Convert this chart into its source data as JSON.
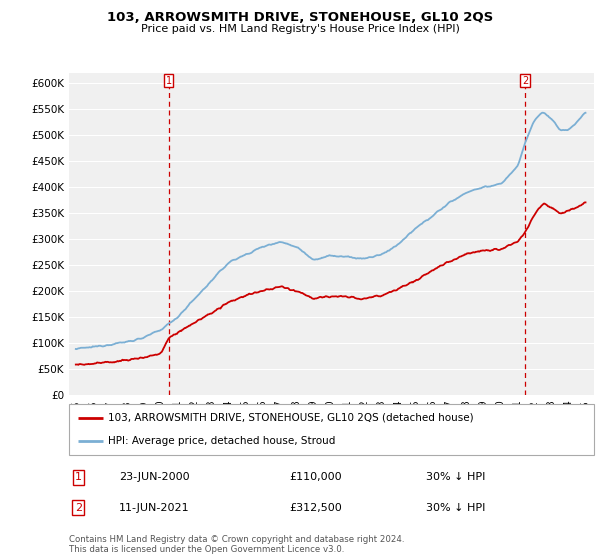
{
  "title": "103, ARROWSMITH DRIVE, STONEHOUSE, GL10 2QS",
  "subtitle": "Price paid vs. HM Land Registry's House Price Index (HPI)",
  "red_label": "103, ARROWSMITH DRIVE, STONEHOUSE, GL10 2QS (detached house)",
  "blue_label": "HPI: Average price, detached house, Stroud",
  "marker1_date": "23-JUN-2000",
  "marker1_price": 110000,
  "marker1_info": "30% ↓ HPI",
  "marker2_date": "11-JUN-2021",
  "marker2_price": 312500,
  "marker2_info": "30% ↓ HPI",
  "footer": "Contains HM Land Registry data © Crown copyright and database right 2024.\nThis data is licensed under the Open Government Licence v3.0.",
  "ylim": [
    0,
    620000
  ],
  "yticks": [
    0,
    50000,
    100000,
    150000,
    200000,
    250000,
    300000,
    350000,
    400000,
    450000,
    500000,
    550000,
    600000
  ],
  "red_color": "#cc0000",
  "blue_color": "#7bafd4",
  "background": "#f0f0f0",
  "grid_color": "#ffffff",
  "marker1_x": 2000.46,
  "marker2_x": 2021.44,
  "blue_anchors_x": [
    1995.0,
    1996.0,
    1997.0,
    1998.0,
    1999.0,
    2000.0,
    2001.0,
    2002.0,
    2003.0,
    2004.0,
    2005.0,
    2006.0,
    2007.0,
    2008.0,
    2009.0,
    2010.0,
    2011.0,
    2012.0,
    2013.0,
    2014.0,
    2015.0,
    2016.0,
    2017.0,
    2018.0,
    2019.0,
    2020.0,
    2021.0,
    2021.5,
    2022.0,
    2022.5,
    2023.0,
    2023.5,
    2024.0,
    2024.5,
    2025.0
  ],
  "blue_anchors_y": [
    88000,
    92000,
    97000,
    102000,
    110000,
    125000,
    150000,
    185000,
    220000,
    255000,
    270000,
    285000,
    295000,
    285000,
    260000,
    268000,
    265000,
    262000,
    270000,
    290000,
    320000,
    345000,
    370000,
    390000,
    400000,
    405000,
    440000,
    490000,
    530000,
    545000,
    530000,
    510000,
    510000,
    525000,
    545000
  ],
  "red_anchors_x": [
    1995.0,
    1996.0,
    1997.0,
    1998.0,
    1999.0,
    2000.0,
    2000.46,
    2001.0,
    2002.0,
    2003.0,
    2004.0,
    2005.0,
    2006.0,
    2007.0,
    2008.0,
    2009.0,
    2010.0,
    2011.0,
    2012.0,
    2013.0,
    2014.0,
    2015.0,
    2016.0,
    2017.0,
    2018.0,
    2019.0,
    2020.0,
    2021.0,
    2021.44,
    2022.0,
    2022.5,
    2023.0,
    2023.5,
    2024.0,
    2025.0
  ],
  "red_anchors_y": [
    58000,
    60000,
    63000,
    67000,
    72000,
    80000,
    110000,
    120000,
    140000,
    158000,
    178000,
    192000,
    200000,
    208000,
    200000,
    185000,
    190000,
    188000,
    185000,
    192000,
    205000,
    220000,
    240000,
    258000,
    272000,
    278000,
    280000,
    295000,
    312500,
    350000,
    370000,
    360000,
    350000,
    355000,
    370000
  ]
}
